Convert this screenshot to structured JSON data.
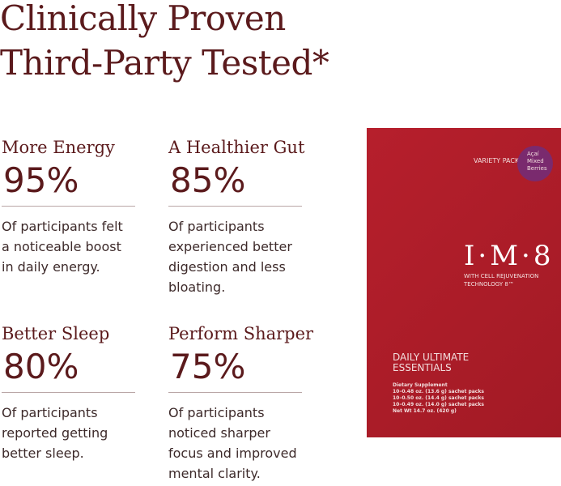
{
  "header": {
    "lines": [
      "Clinically Proven",
      "Third-Party Tested*"
    ]
  },
  "stats": [
    {
      "label": "More Energy",
      "value": "95%",
      "description": [
        "Of participants felt",
        "a noticeable boost",
        "in daily energy."
      ]
    },
    {
      "label": "A Healthier Gut",
      "value": "85%",
      "description": [
        "Of participants",
        "experienced better",
        "digestion and less",
        "bloating."
      ]
    },
    {
      "label": "Better Sleep",
      "value": "80%",
      "description": [
        "Of participants",
        "reported getting",
        "better sleep."
      ]
    },
    {
      "label": "Perform Sharper",
      "value": "75%",
      "description": [
        "Of participants",
        "noticed sharper",
        "focus and improved",
        "mental clarity."
      ]
    }
  ],
  "product": {
    "pack": "VARIETY PACK",
    "flavor": [
      "Açaí",
      "Mixed",
      "Berries"
    ],
    "brand": "I·M·8",
    "tech": [
      "WITH CELL REJUVENATION",
      "TECHNOLOGY 8™"
    ],
    "name": [
      "DAILY ULTIMATE",
      "ESSENTIALS"
    ],
    "details": [
      "Dietary Supplement",
      "10–0.48 oz. (13.6 g) sachet packs",
      "10–0.50 oz. (14.4 g) sachet packs",
      "10–0.49 oz. (14.0 g) sachet packs",
      "Net Wt 14.7 oz. (420 g)"
    ]
  }
}
